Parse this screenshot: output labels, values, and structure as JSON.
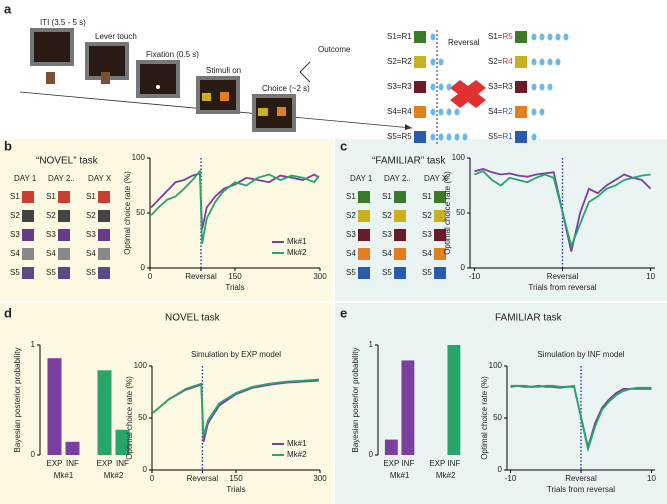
{
  "panel_letters": [
    "a",
    "b",
    "c",
    "d",
    "e"
  ],
  "panel_a": {
    "steps": [
      "ITI (3.5 - 5 s)",
      "Lever touch",
      "Fixation (0.5 s)",
      "Stimuli on",
      "Choice (~2 s)"
    ],
    "outcome": "Outcome",
    "reversal": "Reversal",
    "before": [
      {
        "s": "S1=",
        "r": "R1",
        "drops": 1
      },
      {
        "s": "S2=",
        "r": "R2",
        "drops": 2
      },
      {
        "s": "S3=",
        "r": "R3",
        "drops": 3
      },
      {
        "s": "S4=",
        "r": "R4",
        "drops": 4
      },
      {
        "s": "S5=",
        "r": "R5",
        "drops": 5
      }
    ],
    "after": [
      {
        "s": "S1=",
        "r": "R5",
        "drops": 5
      },
      {
        "s": "S2=",
        "r": "R4",
        "drops": 4
      },
      {
        "s": "S3=",
        "r": "R3",
        "drops": 3
      },
      {
        "s": "S4=",
        "r": "R2",
        "drops": 2
      },
      {
        "s": "S5=",
        "r": "R1",
        "drops": 1
      }
    ]
  },
  "grids": [
    {
      "title": "“NOVEL” task",
      "days": [
        "DAY 1",
        "DAY 2",
        "...",
        "DAY X"
      ],
      "rows": [
        "S1",
        "S2",
        "S3",
        "S4",
        "S5"
      ]
    },
    {
      "title": "“FAMILIAR” task",
      "days": [
        "DAY 1",
        "DAY 2",
        "...",
        "DAY X"
      ],
      "rows": [
        "S1",
        "S2",
        "S3",
        "S4",
        "S5"
      ]
    }
  ],
  "panel_titles": [
    "NOVEL task",
    "FAMILIAR task"
  ],
  "chart_data": [
    {
      "type": "line",
      "ylabel": "Optimal choice rate (%)",
      "xlabel": "Trials",
      "xlim": [
        0,
        300
      ],
      "ylim": [
        0,
        100
      ],
      "yticks": [
        0,
        50,
        100
      ],
      "xticks": [
        0,
        {
          "value": 90,
          "label": "Reversal"
        },
        150,
        300
      ],
      "reference_line": 90,
      "legend": "lower right",
      "x": [
        2,
        15,
        30,
        45,
        60,
        75,
        88,
        92,
        100,
        115,
        130,
        150,
        170,
        190,
        210,
        230,
        250,
        270,
        290,
        298
      ],
      "series": [
        {
          "name": "Mk#1",
          "color": "#7b3fa0",
          "values": [
            55,
            62,
            70,
            78,
            80,
            84,
            86,
            35,
            55,
            65,
            72,
            76,
            82,
            80,
            78,
            84,
            82,
            80,
            85,
            82
          ]
        },
        {
          "name": "Mk#2",
          "color": "#27a56b",
          "values": [
            48,
            55,
            62,
            65,
            72,
            80,
            88,
            22,
            45,
            60,
            70,
            78,
            75,
            82,
            85,
            80,
            84,
            82,
            78,
            84
          ]
        }
      ]
    },
    {
      "type": "line",
      "ylabel": "Optimal choice rate (%)",
      "xlabel": "Trials from reversal",
      "xlim": [
        -10.5,
        10.5
      ],
      "ylim": [
        0,
        100
      ],
      "yticks": [
        0,
        50,
        100
      ],
      "xticks": [
        -10,
        {
          "value": 0,
          "label": "Reversal"
        },
        10
      ],
      "reference_line": 0,
      "x": [
        -10,
        -9,
        -8,
        -7,
        -6,
        -5,
        -4,
        -3,
        -2,
        -1,
        1,
        2,
        3,
        4,
        5,
        6,
        7,
        8,
        9,
        10
      ],
      "series": [
        {
          "color": "#7b3fa0",
          "values": [
            88,
            90,
            87,
            85,
            86,
            84,
            83,
            85,
            86,
            87,
            15,
            50,
            72,
            68,
            75,
            80,
            85,
            82,
            80,
            72
          ]
        },
        {
          "color": "#27a56b",
          "values": [
            85,
            88,
            80,
            75,
            82,
            80,
            78,
            82,
            85,
            82,
            20,
            40,
            60,
            65,
            72,
            75,
            80,
            82,
            84,
            85
          ]
        }
      ]
    },
    {
      "type": "bar",
      "ylabel": "Bayesian posterior probability",
      "ylim": [
        0,
        1
      ],
      "yticks": [
        0,
        1
      ],
      "categories": [
        "EXP",
        "INF"
      ],
      "series": [
        {
          "name": "Mk#1",
          "color": "#7b3fa0",
          "values": [
            0.88,
            0.12
          ]
        },
        {
          "name": "Mk#2",
          "color": "#27a56b",
          "values": [
            0.77,
            0.23
          ]
        }
      ]
    },
    {
      "type": "line",
      "title": "Simulation by EXP model",
      "ylabel": "Optimal choice rate (%)",
      "xlabel": "Trials",
      "xlim": [
        0,
        300
      ],
      "ylim": [
        0,
        100
      ],
      "yticks": [
        0,
        50,
        100
      ],
      "xticks": [
        0,
        {
          "value": 90,
          "label": "Reversal"
        },
        150,
        300
      ],
      "reference_line": 90,
      "legend": "lower right",
      "x": [
        2,
        30,
        60,
        88,
        92,
        100,
        120,
        150,
        180,
        210,
        240,
        270,
        298
      ],
      "series": [
        {
          "name": "Mk#1",
          "color": "#7b3fa0",
          "values": [
            55,
            68,
            77,
            82,
            27,
            45,
            62,
            73,
            79,
            82,
            84,
            85,
            86
          ]
        },
        {
          "name": "Mk#2",
          "color": "#27a56b",
          "values": [
            55,
            68,
            78,
            83,
            32,
            48,
            64,
            74,
            80,
            83,
            85,
            86,
            87
          ]
        }
      ]
    },
    {
      "type": "bar",
      "ylabel": "Bayesian posterior probability",
      "ylim": [
        0,
        1
      ],
      "yticks": [
        0,
        1
      ],
      "categories": [
        "EXP",
        "INF"
      ],
      "series": [
        {
          "name": "Mk#1",
          "color": "#7b3fa0",
          "values": [
            0.14,
            0.86
          ]
        },
        {
          "name": "Mk#2",
          "color": "#27a56b",
          "values": [
            0.0,
            1.0
          ]
        }
      ]
    },
    {
      "type": "line",
      "title": "Simulation by INF model",
      "ylabel": "Optimal choice rate (%)",
      "xlabel": "Trials from reversal",
      "xlim": [
        -10.5,
        10.5
      ],
      "ylim": [
        0,
        100
      ],
      "yticks": [
        0,
        50,
        100
      ],
      "xticks": [
        -10,
        {
          "value": 0,
          "label": "Reversal"
        },
        10
      ],
      "reference_line": 0,
      "x": [
        -10,
        -9,
        -8,
        -7,
        -6,
        -5,
        -4,
        -3,
        -2,
        -1,
        1,
        2,
        3,
        4,
        5,
        6,
        7,
        8,
        9,
        10
      ],
      "series": [
        {
          "color": "#7b3fa0",
          "values": [
            80,
            81,
            80,
            80,
            81,
            80,
            80,
            79,
            80,
            80,
            22,
            45,
            60,
            68,
            74,
            78,
            78,
            78,
            78,
            78
          ]
        },
        {
          "color": "#27a56b",
          "values": [
            81,
            81,
            81,
            80,
            80,
            81,
            81,
            80,
            80,
            81,
            20,
            42,
            58,
            66,
            72,
            76,
            78,
            79,
            79,
            79
          ]
        }
      ]
    }
  ]
}
